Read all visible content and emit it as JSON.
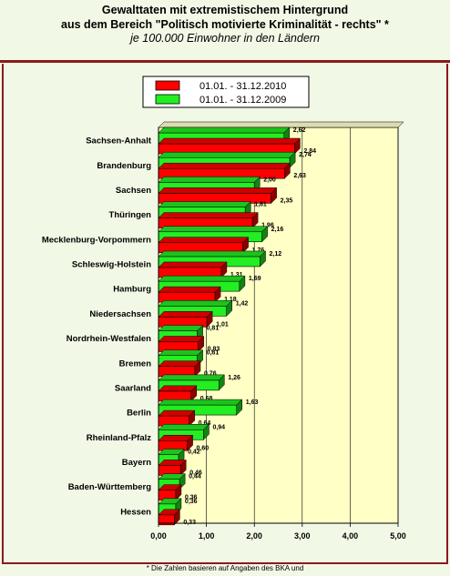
{
  "header": {
    "title_line1": "Gewalttaten mit extremistischem Hintergrund",
    "title_line2": "aus dem Bereich \"Politisch motivierte Kriminalität - rechts\" *",
    "subtitle": "je 100.000 Einwohner in den Ländern"
  },
  "footnote": "* Die Zahlen basieren auf Angaben des BKA und",
  "colors": {
    "series_2010": "#ff0000",
    "series_2009": "#22ee22",
    "plot_background": "#ffffc6",
    "frame": "#8b1a1a"
  },
  "chart_data": {
    "type": "bar",
    "orientation": "horizontal",
    "title": "Gewalttaten mit extremistischem Hintergrund",
    "categories": [
      "Sachsen-Anhalt",
      "Brandenburg",
      "Sachsen",
      "Thüringen",
      "Mecklenburg-Vorpommern",
      "Schleswig-Holstein",
      "Hamburg",
      "Niedersachsen",
      "Nordrhein-Westfalen",
      "Bremen",
      "Saarland",
      "Berlin",
      "Rheinland-Pfalz",
      "Bayern",
      "Baden-Württemberg",
      "Hessen"
    ],
    "series": [
      {
        "name": "01.01. - 31.12.2010",
        "values": [
          2.84,
          2.63,
          2.35,
          1.96,
          1.76,
          1.31,
          1.18,
          1.01,
          0.83,
          0.76,
          0.68,
          0.64,
          0.6,
          0.46,
          0.36,
          0.33
        ],
        "labels": [
          "2,84",
          "2,63",
          "2,35",
          "1,96",
          "1,76",
          "1,31",
          "1,18",
          "1,01",
          "0,83",
          "0,76",
          "0,68",
          "0,64",
          "0,60",
          "0,46",
          "0,36",
          "0,33"
        ]
      },
      {
        "name": "01.01. - 31.12.2009",
        "values": [
          2.62,
          2.74,
          2.0,
          1.81,
          2.16,
          2.12,
          1.69,
          1.42,
          0.81,
          0.81,
          1.26,
          1.63,
          0.94,
          0.42,
          0.44,
          0.36
        ],
        "labels": [
          "2,62",
          "2,74",
          "2,00",
          "1,81",
          "2,16",
          "2,12",
          "1,69",
          "1,42",
          "0,81",
          "0,81",
          "1,26",
          "1,63",
          "0,94",
          "0,42",
          "0,44",
          "0,36"
        ]
      }
    ],
    "x_ticks": [
      "0,00",
      "1,00",
      "2,00",
      "3,00",
      "4,00",
      "5,00"
    ],
    "xlim": [
      0,
      5
    ],
    "grid": true,
    "legend_position": "top-center"
  }
}
